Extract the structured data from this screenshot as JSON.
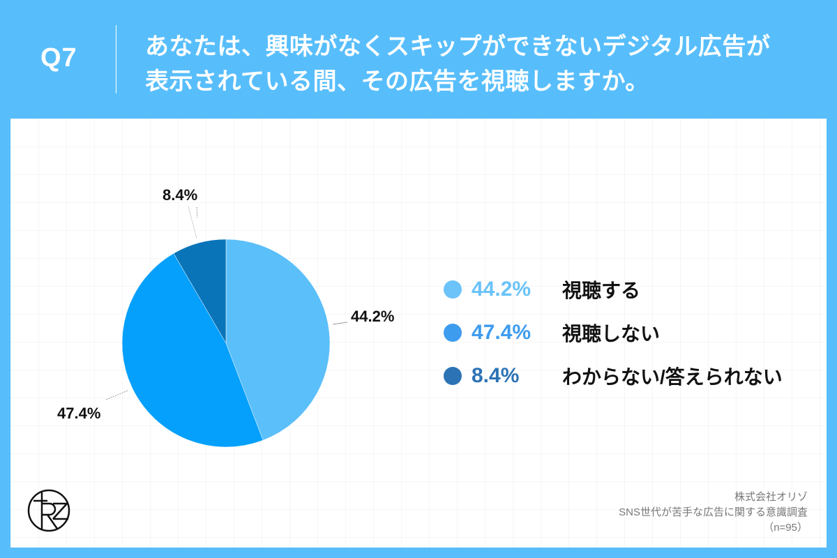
{
  "header": {
    "question_number": "Q7",
    "title_line1": "あなたは、興味がなくスキップができないデジタル広告が",
    "title_line2": "表示されている間、その広告を視聴しますか。",
    "background_color": "#58BEFB"
  },
  "chart_data": {
    "type": "pie",
    "title": "あなたは、興味がなくスキップができないデジタル広告が表示されている間、その広告を視聴しますか。",
    "categories": [
      "視聴する",
      "視聴しない",
      "わからない/答えられない"
    ],
    "values": [
      44.2,
      47.4,
      8.4
    ],
    "value_labels": [
      "44.2%",
      "47.4%",
      "8.4%"
    ],
    "colors": [
      "#5BBFFA",
      "#05A0FB",
      "#0A74B9"
    ],
    "legend_colors": [
      "#6BC3F9",
      "#3E9CEF",
      "#2C73B5"
    ],
    "start_angle": "12 o'clock",
    "direction": "clockwise",
    "legend_position": "right",
    "sample_size": "n=95"
  },
  "legend": {
    "items": [
      {
        "value": "44.2%",
        "label": "視聴する"
      },
      {
        "value": "47.4%",
        "label": "視聴しない"
      },
      {
        "value": "8.4%",
        "label": "わからない/答えられない"
      }
    ]
  },
  "pie_labels": {
    "slice1": "44.2%",
    "slice2": "47.4%",
    "slice3": "8.4%"
  },
  "footer": {
    "company": "株式会社オリゾ",
    "survey": "SNS世代が苦手な広告に関する意識調査",
    "sample": "（n=95）"
  },
  "logo": {
    "text": "RZ"
  }
}
